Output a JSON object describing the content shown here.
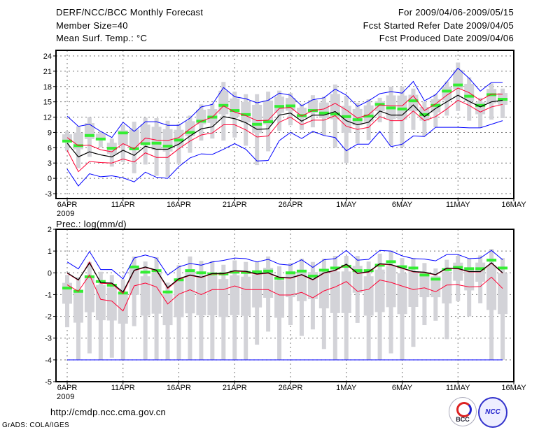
{
  "header": {
    "title": "DERF/NCC/BCC Monthly Forecast",
    "member_size": "Member Size=40",
    "variable": "Mean Surf. Temp.: °C",
    "period": "For 2009/04/06-2009/05/15",
    "started": "Fcst Started Refer Date 2009/04/05",
    "produced": "Fcst Produced Date 2009/04/06"
  },
  "footer": {
    "url": "http://cmdp.ncc.cma.gov.cn",
    "credit": "GrADS: COLA/IGES",
    "logo_bcc": "BCC",
    "logo_ncc": "NCC"
  },
  "colors": {
    "max_min": "#0000ff",
    "spread": "#ff0033",
    "mean": "#000000",
    "median": "#33ee33",
    "range": "#d3d3d8"
  },
  "chart_data": [
    {
      "type": "box-line",
      "title": "Mean Surf. Temp.: °C",
      "ylabel": "°C",
      "ylim": [
        -4,
        25
      ],
      "yticks": [
        -3,
        0,
        3,
        6,
        9,
        12,
        15,
        18,
        21,
        24
      ],
      "xticks": [
        "6APR",
        "11APR",
        "16APR",
        "21APR",
        "26APR",
        "1MAY",
        "6MAY",
        "11MAY",
        "16MAY"
      ],
      "xyear": "2009",
      "grid": true,
      "days": 40,
      "series": {
        "mean": [
          6.9,
          4.2,
          5.2,
          4.6,
          4.2,
          5.5,
          4.5,
          6.3,
          5.7,
          5.7,
          6.7,
          8.3,
          9.7,
          10.1,
          12.1,
          11.7,
          10.9,
          9.6,
          9.7,
          12.4,
          12.8,
          11.2,
          12.4,
          12.4,
          13.1,
          11.3,
          10.5,
          11.0,
          13.2,
          12.4,
          12.4,
          14.4,
          12.1,
          13.7,
          15.0,
          16.3,
          15.1,
          14.0,
          15.0,
          15.3
        ],
        "upper": [
          8.0,
          6.4,
          6.5,
          5.6,
          5.2,
          6.8,
          5.8,
          7.9,
          7.5,
          7.4,
          8.0,
          9.7,
          11.2,
          12.0,
          14.2,
          13.0,
          12.3,
          11.3,
          11.4,
          13.7,
          13.9,
          12.2,
          13.3,
          13.6,
          14.7,
          13.4,
          11.8,
          12.5,
          14.4,
          14.2,
          14.2,
          16.2,
          13.3,
          14.6,
          16.3,
          17.7,
          16.8,
          15.3,
          16.5,
          16.5
        ],
        "lower": [
          5.5,
          1.3,
          3.3,
          3.1,
          3.0,
          3.8,
          3.2,
          5.0,
          4.1,
          4.1,
          5.8,
          7.3,
          8.5,
          8.9,
          10.5,
          10.5,
          9.5,
          8.1,
          8.3,
          11.0,
          12.0,
          10.5,
          11.4,
          11.4,
          12.3,
          10.2,
          9.6,
          10.0,
          12.1,
          11.3,
          11.3,
          13.2,
          11.3,
          12.1,
          13.6,
          15.3,
          14.3,
          13.0,
          14.0,
          14.5
        ],
        "max": [
          12.2,
          10.2,
          10.6,
          9.2,
          8.0,
          11.0,
          9.2,
          11.1,
          11.1,
          10.4,
          10.4,
          11.8,
          14.0,
          14.5,
          17.8,
          16.0,
          15.6,
          14.8,
          15.3,
          16.7,
          16.3,
          14.2,
          15.4,
          15.8,
          17.5,
          16.3,
          14.1,
          15.2,
          16.6,
          17.0,
          16.7,
          19.0,
          15.2,
          16.4,
          18.9,
          21.6,
          19.6,
          17.1,
          18.8,
          18.8
        ],
        "min": [
          1.8,
          -1.5,
          0.9,
          0.3,
          0.5,
          0.1,
          -0.7,
          1.2,
          0.2,
          0.0,
          2.3,
          4.0,
          4.8,
          4.7,
          5.7,
          6.8,
          5.7,
          3.4,
          3.5,
          7.4,
          9.0,
          7.8,
          9.2,
          8.4,
          8.0,
          5.4,
          6.7,
          6.7,
          9.2,
          6.2,
          6.7,
          8.3,
          8.2,
          10.0,
          10.0,
          10.0,
          9.9,
          9.9,
          10.6,
          11.3
        ],
        "median": [
          7.3,
          6.4,
          8.4,
          7.7,
          5.9,
          8.9,
          5.8,
          6.8,
          6.9,
          6.3,
          7.5,
          9.0,
          11.2,
          12.0,
          14.3,
          13.3,
          12.5,
          10.6,
          11.1,
          14.1,
          14.2,
          12.3,
          13.3,
          12.8,
          12.6,
          12.1,
          11.5,
          12.2,
          14.5,
          13.8,
          13.6,
          15.2,
          12.5,
          14.3,
          17.1,
          18.3,
          16.1,
          14.3,
          16.4,
          15.5
        ],
        "range_low": [
          5.4,
          2.0,
          4.2,
          6.1,
          2.3,
          3.2,
          1.0,
          2.7,
          0.5,
          0.3,
          2.8,
          5.0,
          7.4,
          7.8,
          7.4,
          8.0,
          6.4,
          2.6,
          5.3,
          9.3,
          10.4,
          9.5,
          10.0,
          8.4,
          6.0,
          3.0,
          6.8,
          7.5,
          11.0,
          6.4,
          6.2,
          9.5,
          8.3,
          10.0,
          12.3,
          13.2,
          11.3,
          9.9,
          11.5,
          11.8
        ],
        "range_high": [
          9.2,
          10.2,
          12.0,
          9.2,
          7.8,
          10.5,
          11.1,
          11.9,
          11.8,
          11.3,
          10.7,
          12.3,
          14.5,
          14.6,
          18.9,
          17.0,
          16.5,
          16.5,
          17.0,
          17.2,
          16.7,
          14.6,
          16.3,
          16.0,
          18.4,
          16.2,
          14.8,
          15.5,
          15.8,
          18.0,
          18.0,
          17.6,
          15.0,
          16.5,
          19.0,
          22.7,
          19.8,
          15.8,
          18.6,
          17.6
        ]
      }
    },
    {
      "type": "box-line",
      "title": "Prec.: log(mm/d)",
      "ylabel": "log(mm/d)",
      "ylim": [
        -5,
        2
      ],
      "yticks": [
        -5,
        -4,
        -3,
        -2,
        -1,
        0,
        1,
        2
      ],
      "xticks": [
        "6APR",
        "11APR",
        "16APR",
        "21APR",
        "26APR",
        "1MAY",
        "6MAY",
        "11MAY",
        "16MAY"
      ],
      "xyear": "2009",
      "grid": true,
      "days": 40,
      "series": {
        "mean": [
          0.0,
          -0.32,
          0.45,
          -0.45,
          -0.47,
          -0.88,
          0.12,
          0.27,
          0.12,
          -0.68,
          -0.27,
          -0.1,
          -0.2,
          -0.03,
          -0.03,
          0.1,
          0.07,
          -0.05,
          0.0,
          -0.2,
          -0.23,
          -0.08,
          -0.31,
          0.0,
          0.12,
          0.4,
          -0.02,
          0.05,
          0.42,
          0.38,
          0.22,
          0.06,
          0.03,
          -0.08,
          0.22,
          0.2,
          0.06,
          0.06,
          0.46,
          0.0
        ],
        "upper": [
          -0.02,
          -0.34,
          0.5,
          -0.48,
          -0.5,
          -0.95,
          0.1,
          0.25,
          0.1,
          -0.72,
          -0.3,
          -0.12,
          -0.22,
          -0.05,
          -0.05,
          0.08,
          0.05,
          -0.07,
          -0.02,
          -0.22,
          -0.25,
          -0.1,
          -0.33,
          -0.02,
          0.1,
          0.38,
          -0.04,
          0.03,
          0.4,
          0.36,
          0.2,
          0.04,
          0.01,
          -0.1,
          0.2,
          0.18,
          0.04,
          0.04,
          0.44,
          -0.02
        ],
        "lower": [
          -0.55,
          -0.85,
          -0.1,
          -1.22,
          -1.3,
          -1.75,
          -0.6,
          -0.47,
          -0.65,
          -1.43,
          -0.98,
          -0.78,
          -1.0,
          -0.77,
          -0.77,
          -0.6,
          -0.77,
          -0.77,
          -0.77,
          -1.02,
          -1.02,
          -0.9,
          -1.15,
          -0.83,
          -0.65,
          -0.4,
          -0.85,
          -0.76,
          -0.33,
          -0.44,
          -0.61,
          -0.77,
          -0.69,
          -0.87,
          -0.56,
          -0.55,
          -0.65,
          -0.63,
          -0.2,
          -0.72
        ],
        "max": [
          0.5,
          0.18,
          0.98,
          0.15,
          0.15,
          -0.28,
          0.68,
          0.82,
          0.67,
          -0.1,
          0.27,
          0.43,
          0.35,
          0.5,
          0.57,
          0.68,
          0.65,
          0.5,
          0.62,
          0.4,
          0.35,
          0.6,
          0.25,
          0.6,
          0.65,
          1.03,
          0.58,
          0.62,
          1.03,
          1.0,
          0.78,
          0.65,
          0.63,
          0.55,
          0.84,
          0.84,
          0.65,
          0.68,
          1.03,
          0.6
        ],
        "min": [
          -4,
          -4,
          -4,
          -4,
          -4,
          -4,
          -4,
          -4,
          -4,
          -4,
          -4,
          -4,
          -4,
          -4,
          -4,
          -4,
          -4,
          -4,
          -4,
          -4,
          -4,
          -4,
          -4,
          -4,
          -4,
          -4,
          -4,
          -4,
          -4,
          -4,
          -4,
          -4,
          -4,
          -4,
          -4,
          -4,
          -4,
          -4,
          -4,
          -4
        ],
        "median": [
          -0.7,
          -0.85,
          -0.18,
          -0.4,
          -0.57,
          -0.93,
          0.27,
          0.03,
          0.1,
          -0.88,
          -0.32,
          0.1,
          0.0,
          -0.05,
          -0.05,
          0.03,
          0.02,
          0.05,
          0.08,
          -0.25,
          0.0,
          0.08,
          -0.15,
          0.12,
          0.22,
          0.3,
          0.1,
          0.1,
          0.35,
          0.51,
          0.28,
          0.22,
          -0.1,
          -0.29,
          0.15,
          0.25,
          0.19,
          0.19,
          0.58,
          0.22
        ],
        "range_low": [
          -2.5,
          -4,
          -3.7,
          -4,
          -3.9,
          -4,
          -2.45,
          -4,
          -4,
          -4,
          -4,
          -4,
          -4,
          -4,
          -4,
          -4,
          -4,
          -3.3,
          -2.7,
          -4,
          -2.4,
          -2.9,
          -2.6,
          -3.5,
          -4,
          -4,
          -2.3,
          -4,
          -4,
          -3.7,
          -4,
          -3.4,
          -2.4,
          -2.2,
          -3.05,
          -1.3,
          -2.0,
          -1.4,
          -4,
          -4
        ],
        "range_high": [
          -0.1,
          -0.2,
          0.5,
          0.05,
          -0.1,
          -0.3,
          0.75,
          0.52,
          0.72,
          -0.45,
          0.35,
          0.75,
          0.55,
          0.55,
          0.37,
          0.57,
          0.5,
          0.5,
          0.75,
          0.3,
          0.45,
          0.65,
          0.5,
          0.65,
          0.78,
          0.78,
          0.78,
          0.52,
          0.88,
          1.02,
          0.68,
          0.68,
          0.45,
          0.2,
          0.6,
          0.78,
          0.65,
          0.8,
          1.1,
          0.68
        ]
      }
    }
  ]
}
